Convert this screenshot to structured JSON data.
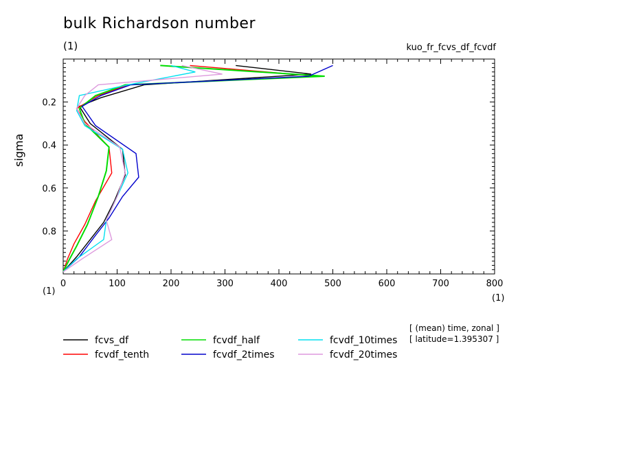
{
  "chart_data": {
    "type": "line",
    "title": "bulk Richardson number",
    "title_unit": "(1)",
    "run_name": "kuo_fr_fcvs_df_fcvdf",
    "ylabel": "sigma",
    "xunit_left": "(1)",
    "xunit_right": "(1)",
    "notes": [
      "[ (mean) time, zonal ]",
      "[ latitude=1.395307 ]"
    ],
    "xlim": [
      0,
      800
    ],
    "ylim": [
      0.0,
      1.0
    ],
    "y_inverted": true,
    "xticks": [
      "0",
      "100",
      "200",
      "300",
      "400",
      "500",
      "600",
      "700",
      "800"
    ],
    "yticks": [
      "0.2",
      "0.4",
      "0.6",
      "0.8"
    ],
    "grid": false,
    "legend_position": "bottom",
    "series": [
      {
        "name": "fcvs_df",
        "color": "#000000",
        "points": [
          [
            320,
            0.03
          ],
          [
            460,
            0.07
          ],
          [
            150,
            0.12
          ],
          [
            70,
            0.18
          ],
          [
            30,
            0.22
          ],
          [
            50,
            0.3
          ],
          [
            110,
            0.42
          ],
          [
            115,
            0.54
          ],
          [
            95,
            0.66
          ],
          [
            75,
            0.76
          ],
          [
            50,
            0.84
          ],
          [
            25,
            0.92
          ],
          [
            0,
            0.99
          ]
        ]
      },
      {
        "name": "fcvdf_tenth",
        "color": "#ff0000",
        "points": [
          [
            235,
            0.03
          ],
          [
            470,
            0.08
          ],
          [
            120,
            0.12
          ],
          [
            65,
            0.17
          ],
          [
            25,
            0.23
          ],
          [
            40,
            0.29
          ],
          [
            85,
            0.41
          ],
          [
            90,
            0.53
          ],
          [
            60,
            0.66
          ],
          [
            40,
            0.77
          ],
          [
            20,
            0.86
          ],
          [
            8,
            0.93
          ],
          [
            0,
            0.99
          ]
        ]
      },
      {
        "name": "fcvdf_half",
        "color": "#00dd00",
        "points": [
          [
            180,
            0.03
          ],
          [
            485,
            0.08
          ],
          [
            115,
            0.12
          ],
          [
            60,
            0.17
          ],
          [
            30,
            0.23
          ],
          [
            40,
            0.3
          ],
          [
            85,
            0.41
          ],
          [
            80,
            0.52
          ],
          [
            65,
            0.64
          ],
          [
            45,
            0.77
          ],
          [
            25,
            0.87
          ],
          [
            12,
            0.93
          ],
          [
            0,
            0.99
          ]
        ]
      },
      {
        "name": "fcvdf_2times",
        "color": "#0000cc",
        "points": [
          [
            500,
            0.03
          ],
          [
            455,
            0.08
          ],
          [
            125,
            0.12
          ],
          [
            70,
            0.17
          ],
          [
            35,
            0.22
          ],
          [
            60,
            0.31
          ],
          [
            135,
            0.44
          ],
          [
            140,
            0.55
          ],
          [
            110,
            0.64
          ],
          [
            85,
            0.74
          ],
          [
            60,
            0.82
          ],
          [
            30,
            0.92
          ],
          [
            0,
            0.99
          ]
        ]
      },
      {
        "name": "fcvdf_10times",
        "color": "#00e0f0",
        "points": [
          [
            200,
            0.03
          ],
          [
            245,
            0.06
          ],
          [
            120,
            0.12
          ],
          [
            30,
            0.17
          ],
          [
            25,
            0.24
          ],
          [
            40,
            0.31
          ],
          [
            110,
            0.42
          ],
          [
            120,
            0.53
          ],
          [
            100,
            0.64
          ],
          [
            80,
            0.75
          ],
          [
            75,
            0.84
          ],
          [
            25,
            0.93
          ],
          [
            0,
            0.99
          ]
        ]
      },
      {
        "name": "fcvdf_20times",
        "color": "#dd99dd",
        "points": [
          [
            220,
            0.03
          ],
          [
            295,
            0.07
          ],
          [
            65,
            0.12
          ],
          [
            40,
            0.17
          ],
          [
            25,
            0.23
          ],
          [
            40,
            0.3
          ],
          [
            105,
            0.41
          ],
          [
            115,
            0.53
          ],
          [
            100,
            0.64
          ],
          [
            80,
            0.75
          ],
          [
            90,
            0.84
          ],
          [
            35,
            0.93
          ],
          [
            0,
            0.99
          ]
        ]
      }
    ]
  }
}
